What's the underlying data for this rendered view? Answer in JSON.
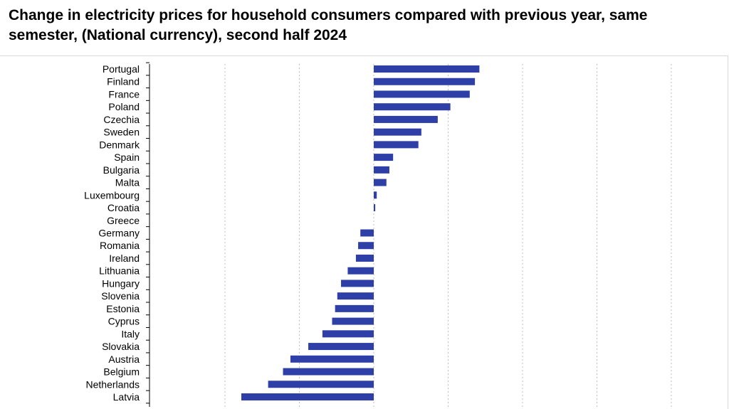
{
  "title": "Change in electricity prices for household consumers compared with previous year, same semester, (National currency), second half 2024",
  "colors": {
    "bar": "#2e40a8",
    "grid": "#bfbfbf",
    "axis": "#000000"
  },
  "chart_data": {
    "type": "bar",
    "orientation": "horizontal",
    "title": "Change in electricity prices for household consumers compared with previous year, same semester, (National currency), second half 2024",
    "xlabel": "",
    "ylabel": "",
    "xlim": [
      -20,
      20
    ],
    "grid": true,
    "categories": [
      "Portugal",
      "Finland",
      "France",
      "Poland",
      "Czechia",
      "Sweden",
      "Denmark",
      "Spain",
      "Bulgaria",
      "Malta",
      "Luxembourg",
      "Croatia",
      "Greece",
      "Germany",
      "Romania",
      "Ireland",
      "Lithuania",
      "Hungary",
      "Slovenia",
      "Estonia",
      "Cyprus",
      "Italy",
      "Slovakia",
      "Austria",
      "Belgium",
      "Netherlands",
      "Latvia"
    ],
    "values": [
      14.2,
      13.6,
      12.9,
      10.3,
      8.6,
      6.4,
      6.0,
      2.6,
      2.1,
      1.7,
      0.4,
      0.2,
      0.0,
      -1.8,
      -2.1,
      -2.4,
      -3.5,
      -4.4,
      -4.9,
      -5.2,
      -5.6,
      -6.9,
      -8.8,
      -11.2,
      -12.2,
      -14.2,
      -17.8
    ]
  }
}
